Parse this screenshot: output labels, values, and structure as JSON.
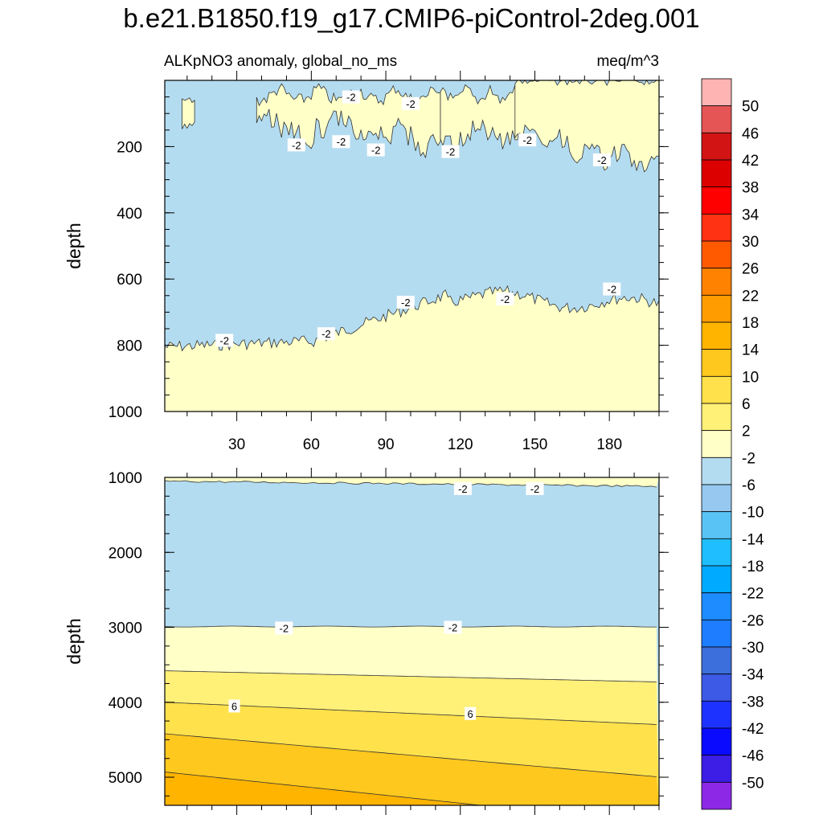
{
  "title": "b.e21.B1850.f19_g17.CMIP6-piControl-2deg.001",
  "palette": {
    "c50": "#ffb4b4",
    "c46": "#e65555",
    "c42": "#d21414",
    "c38": "#dc0000",
    "c34": "#ff0000",
    "c30": "#ff3214",
    "c26": "#ff5a00",
    "c22": "#ff8200",
    "c18": "#ff9c00",
    "c14": "#ffb400",
    "c10": "#ffc81e",
    "c6": "#ffe14b",
    "c2": "#fff078",
    "cm2": "#ffffc8",
    "cm6": "#b4dcf0",
    "cm10": "#96c8f0",
    "cm14": "#5ac3f5",
    "cm18": "#1ebeff",
    "cm22": "#00aaff",
    "cm26": "#1e8cff",
    "cm30": "#1e7dff",
    "cm34": "#3c6edc",
    "cm38": "#3c5ae6",
    "cm42": "#1e32ff",
    "cm46": "#0a0aff",
    "cm50": "#3c1ee6",
    "cmin": "#8c28e6"
  },
  "chart_data": [
    {
      "type": "contour",
      "subtitle_left": "ALKpNO3 anomaly, global_no_ms",
      "subtitle_right": "meq/m^3",
      "ylabel": "depth",
      "xlim": [
        1,
        200
      ],
      "ylim": [
        1000,
        0
      ],
      "xticks": [
        "30",
        "60",
        "90",
        "120",
        "150",
        "180"
      ],
      "xtick_values": [
        30,
        60,
        90,
        120,
        150,
        180
      ],
      "yticks": [
        "200",
        "400",
        "600",
        "800",
        "1000"
      ],
      "ytick_values": [
        200,
        400,
        600,
        800,
        1000
      ],
      "regions": [
        {
          "level_range": [
            -6,
            -2
          ],
          "description": "main field"
        },
        {
          "level_range": [
            -2,
            2
          ],
          "description": "near-surface patches"
        },
        {
          "level_range": [
            -2,
            2
          ],
          "description": "below ~650-820 m"
        }
      ],
      "contour_labels": [
        {
          "text": "-2",
          "x": 76,
          "y": 50
        },
        {
          "text": "-2",
          "x": 100,
          "y": 70
        },
        {
          "text": "-2",
          "x": 54,
          "y": 195
        },
        {
          "text": "-2",
          "x": 72,
          "y": 185
        },
        {
          "text": "-2",
          "x": 86,
          "y": 210
        },
        {
          "text": "-2",
          "x": 116,
          "y": 215
        },
        {
          "text": "-2",
          "x": 147,
          "y": 180
        },
        {
          "text": "-2",
          "x": 177,
          "y": 240
        },
        {
          "text": "-2",
          "x": 25,
          "y": 785
        },
        {
          "text": "-2",
          "x": 66,
          "y": 765
        },
        {
          "text": "-2",
          "x": 98,
          "y": 670
        },
        {
          "text": "-2",
          "x": 138,
          "y": 660
        },
        {
          "text": "-2",
          "x": 181,
          "y": 630
        }
      ]
    },
    {
      "type": "contour",
      "ylabel": "depth",
      "xlim": [
        1,
        200
      ],
      "ylim": [
        5375,
        1000
      ],
      "yticks": [
        "1000",
        "2000",
        "3000",
        "4000",
        "5000"
      ],
      "ytick_values": [
        1000,
        2000,
        3000,
        4000,
        5000
      ],
      "regions": [
        {
          "level_range": [
            -6,
            -2
          ],
          "description": "1100-3000 m"
        },
        {
          "level_range": [
            -2,
            2
          ],
          "description": "near 1000 m and 3000-3600 m"
        },
        {
          "level_range": [
            2,
            6
          ]
        },
        {
          "level_range": [
            6,
            10
          ]
        },
        {
          "level_range": [
            10,
            14
          ]
        },
        {
          "level_range": [
            14,
            18
          ]
        }
      ],
      "contour_labels": [
        {
          "text": "-2",
          "x": 121,
          "y": 1150
        },
        {
          "text": "-2",
          "x": 150,
          "y": 1150
        },
        {
          "text": "-2",
          "x": 49,
          "y": 3010
        },
        {
          "text": "-2",
          "x": 117,
          "y": 3000
        },
        {
          "text": "6",
          "x": 29,
          "y": 4050
        },
        {
          "text": "6",
          "x": 124,
          "y": 4150
        }
      ]
    }
  ],
  "colorbar": {
    "labels": [
      "50",
      "46",
      "42",
      "38",
      "34",
      "30",
      "26",
      "22",
      "18",
      "14",
      "10",
      "6",
      "2",
      "-2",
      "-6",
      "-10",
      "-14",
      "-18",
      "-22",
      "-26",
      "-30",
      "-34",
      "-38",
      "-42",
      "-46",
      "-50"
    ],
    "colors": [
      "#ffb4b4",
      "#e65555",
      "#d21414",
      "#dc0000",
      "#ff0000",
      "#ff3214",
      "#ff5a00",
      "#ff8200",
      "#ff9c00",
      "#ffb400",
      "#ffc81e",
      "#ffe14b",
      "#fff078",
      "#ffffc8",
      "#b4dcf0",
      "#96c8f0",
      "#5ac3f5",
      "#1ebeff",
      "#00aaff",
      "#1e8cff",
      "#1e7dff",
      "#3c6edc",
      "#3c5ae6",
      "#1e32ff",
      "#0a0aff",
      "#3c1ee6",
      "#8c28e6"
    ]
  }
}
